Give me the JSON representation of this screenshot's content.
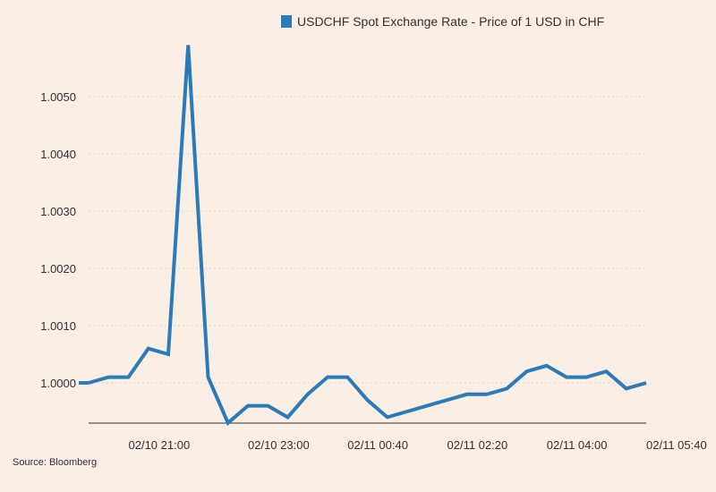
{
  "chart_data": {
    "type": "line",
    "title": "",
    "xlabel": "",
    "ylabel": "",
    "legend": {
      "position": "top-right",
      "entries": [
        "USDCHF Spot Exchange Rate - Price of 1 USD in CHF"
      ]
    },
    "series": [
      {
        "name": "USDCHF Spot Exchange Rate - Price of 1 USD in CHF",
        "color": "#2b7bb9",
        "x": [
          "02/10 20:20",
          "02/10 20:40",
          "02/10 21:00",
          "02/10 21:20",
          "02/10 21:40",
          "02/10 22:00",
          "02/10 22:20",
          "02/10 22:40",
          "02/10 23:00",
          "02/10 23:20",
          "02/10 23:40",
          "02/11 00:00",
          "02/11 00:20",
          "02/11 00:40",
          "02/11 01:00",
          "02/11 01:20",
          "02/11 01:40",
          "02/11 02:00",
          "02/11 02:20",
          "02/11 02:40",
          "02/11 03:00",
          "02/11 03:20",
          "02/11 03:40",
          "02/11 04:00",
          "02/11 04:20",
          "02/11 04:40",
          "02/11 05:00",
          "02/11 05:20",
          "02/11 05:40"
        ],
        "values": [
          1.0,
          1.0001,
          1.0001,
          1.0006,
          1.0005,
          1.0059,
          1.0001,
          0.9993,
          0.9996,
          0.9996,
          0.9994,
          0.9998,
          1.0001,
          1.0001,
          0.9997,
          0.9994,
          0.9995,
          0.9996,
          0.9997,
          0.9998,
          0.9998,
          0.9999,
          1.0002,
          1.0003,
          1.0001,
          1.0001,
          1.0002,
          0.9999,
          1.0
        ]
      }
    ],
    "y_ticks": [
      "1.0000",
      "1.0010",
      "1.0020",
      "1.0030",
      "1.0040",
      "1.0050"
    ],
    "x_ticks": [
      "02/10 21:00",
      "02/10 23:00",
      "02/11 00:40",
      "02/11 02:20",
      "02/11 04:00",
      "02/11 05:40"
    ],
    "ylim": [
      0.9993,
      1.0059
    ],
    "grid": "horizontal-dotted",
    "source": "Source: Bloomberg"
  }
}
